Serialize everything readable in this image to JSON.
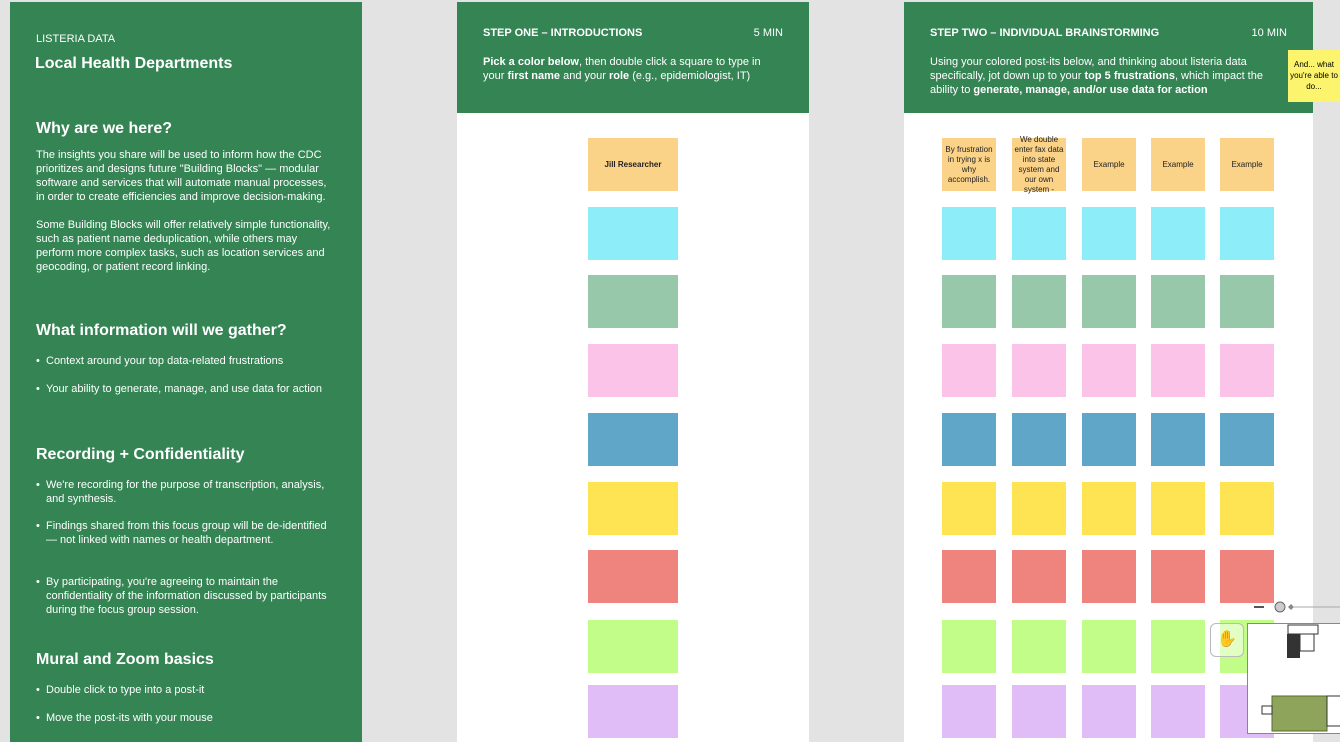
{
  "left": {
    "kicker": "LISTERIA DATA",
    "title": "Local Health Departments",
    "s1": {
      "h": "Why are we here?",
      "p1": "The insights you share will be used to inform how the CDC prioritizes and designs future \"Building Blocks\" — modular software and services that will automate manual processes, in order to create efficiencies and improve decision-making.",
      "p2": "Some Building Blocks will offer relatively simple functionality, such as patient name deduplication, while others may perform more complex tasks, such as location services and geocoding, or patient record linking."
    },
    "s2": {
      "h": "What information will we gather?",
      "items": [
        "Context around your top data-related frustrations",
        "Your ability to generate, manage, and use data for action"
      ]
    },
    "s3": {
      "h": "Recording + Confidentiality",
      "items": [
        "We're recording for the purpose of transcription, analysis, and synthesis.",
        "Findings shared from this focus group will be de-identified — not linked with names or health department.",
        "By participating, you're agreeing to maintain the confidentiality of the information discussed by participants during the focus group session."
      ]
    },
    "s4": {
      "h": "Mural and Zoom basics",
      "items": [
        "Double click to type into a post-it",
        "Move the post-its with your mouse"
      ]
    }
  },
  "step1": {
    "title": "STEP ONE – INTRODUCTIONS",
    "time": "5 MIN",
    "desc": [
      "Pick a color below",
      ", then double click a square to type in your ",
      "first name",
      " and your ",
      "role",
      " (e.g., epidemiologist, IT)"
    ],
    "sticky": "Jill Researcher"
  },
  "step2": {
    "title": "STEP TWO – INDIVIDUAL BRAINSTORMING",
    "time": "10 MIN",
    "desc": [
      "Using your colored post-its below, and thinking about listeria data specifically, jot down up to your ",
      "top 5 frustrations",
      ", which impact the ability to ",
      "generate, manage, and/or use data for action"
    ],
    "stickies": [
      "By frustration in trying x is why accomplish.",
      "We double enter fax data into state system and our own system -",
      "Example",
      "Example",
      "Example"
    ]
  },
  "note": "And... what you're able to do...",
  "colors": [
    "#fad288",
    "#8deef9",
    "#96c8a9",
    "#fbc3e8",
    "#5fa6c8",
    "#fee352",
    "#ef847e",
    "#c2fd8a",
    "#e1bdf8"
  ]
}
